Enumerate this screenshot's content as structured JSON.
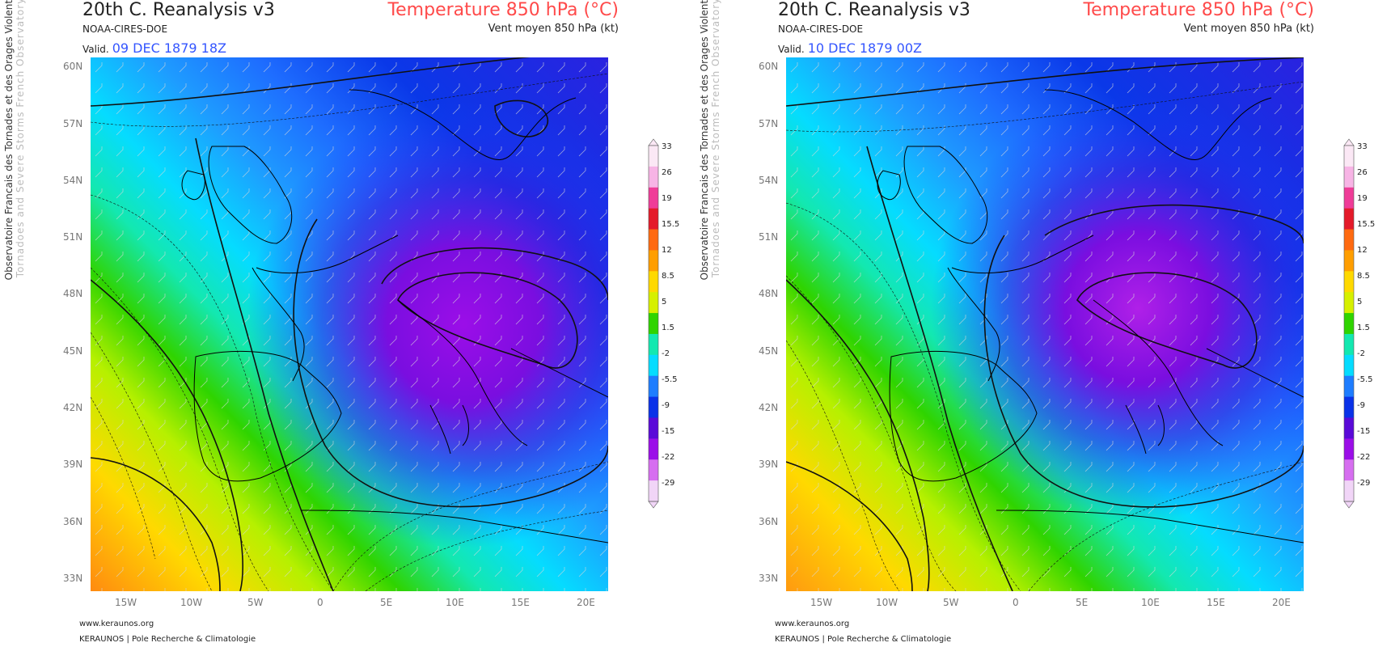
{
  "panels": [
    {
      "title": "20th C. Reanalysis v3",
      "source": "NOAA-CIRES-DOE",
      "valid_label": "Valid.",
      "valid_date": "09 DEC 1879 18Z",
      "variable_title": "Temperature 850 hPa (°C)",
      "wind_title": "Vent moyen 850 hPa (kt)"
    },
    {
      "title": "20th C. Reanalysis v3",
      "source": "NOAA-CIRES-DOE",
      "valid_label": "Valid.",
      "valid_date": "10 DEC 1879 00Z",
      "variable_title": "Temperature 850 hPa (°C)",
      "wind_title": "Vent moyen 850 hPa (kt)"
    }
  ],
  "side_text": {
    "line1": "Observatoire Francais des Tornades et des Orages Violents",
    "line2": "Tornadoes and Severe Storms French Observatory"
  },
  "latitudes": [
    "60N",
    "57N",
    "54N",
    "51N",
    "48N",
    "45N",
    "42N",
    "39N",
    "36N",
    "33N"
  ],
  "longitudes": [
    "15W",
    "10W",
    "5W",
    "0",
    "5E",
    "10E",
    "15E",
    "20E"
  ],
  "colorbar": {
    "labels": [
      "33",
      "26",
      "19",
      "15.5",
      "12",
      "8.5",
      "5",
      "1.5",
      "-2",
      "-5.5",
      "-9",
      "-15",
      "-22",
      "-29"
    ],
    "colors": [
      "#fbe8f5",
      "#f7b4e5",
      "#ef3c98",
      "#e41a2a",
      "#ff6a10",
      "#ff9e00",
      "#ffd900",
      "#d6f000",
      "#2fd400",
      "#13e8b0",
      "#05dcff",
      "#1e7dff",
      "#0a32e8",
      "#5a0ad8",
      "#9b0ee8",
      "#d66ef0",
      "#f1d5f7"
    ]
  },
  "footer": {
    "url": "www.keraunos.org",
    "org": "KERAUNOS | Pole Recherche & Climatologie"
  }
}
